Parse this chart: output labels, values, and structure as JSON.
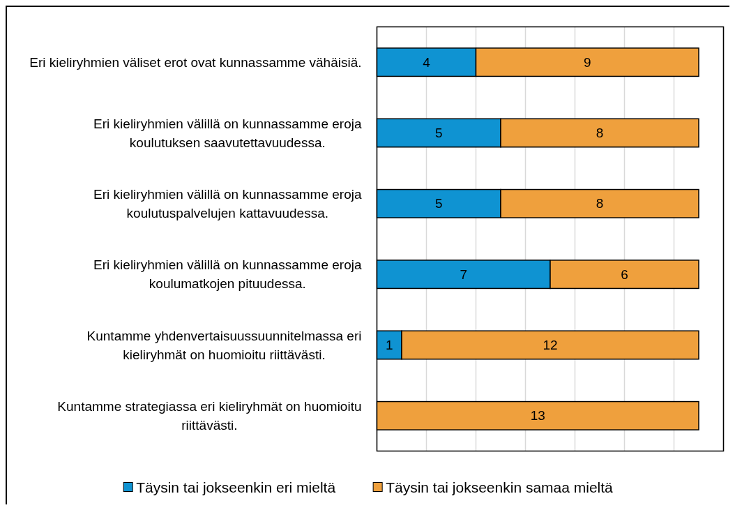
{
  "chart_data": {
    "type": "bar",
    "orientation": "horizontal",
    "stacked": true,
    "categories": [
      "Eri kieliryhmien väliset erot ovat kunnassamme vähäisiä.",
      "Eri kieliryhmien välillä on kunnassamme eroja koulutuksen saavutettavuudessa.",
      "Eri kieliryhmien välillä on kunnassamme eroja koulutuspalvelujen kattavuudessa.",
      "Eri kieliryhmien välillä on kunnassamme eroja koulumatkojen pituudessa.",
      "Kuntamme yhdenvertaisuussuunnitelmassa eri kieliryhmät on huomioitu riittävästi.",
      "Kuntamme strategiassa eri kieliryhmät on huomioitu riittävästi."
    ],
    "series": [
      {
        "name": "Täysin tai jokseenkin eri mieltä",
        "color": "#0f93d2",
        "values": [
          4,
          5,
          5,
          7,
          1,
          null
        ]
      },
      {
        "name": "Täysin tai jokseenkin samaa mieltä",
        "color": "#efa03d",
        "values": [
          9,
          8,
          8,
          6,
          12,
          13
        ]
      }
    ],
    "xlim": [
      0,
      14
    ],
    "xticks": [
      {
        "value": 0,
        "label": null
      },
      {
        "value": 2,
        "label": null
      },
      {
        "value": 4,
        "label": null
      },
      {
        "value": 6,
        "label": null
      },
      {
        "value": 8,
        "label": null
      },
      {
        "value": 10,
        "label": null
      },
      {
        "value": 12,
        "label": null
      },
      {
        "value": 14,
        "label": null
      }
    ],
    "grid": "x",
    "legend": "bottom",
    "data_labels": true,
    "tick_labels": "y"
  }
}
